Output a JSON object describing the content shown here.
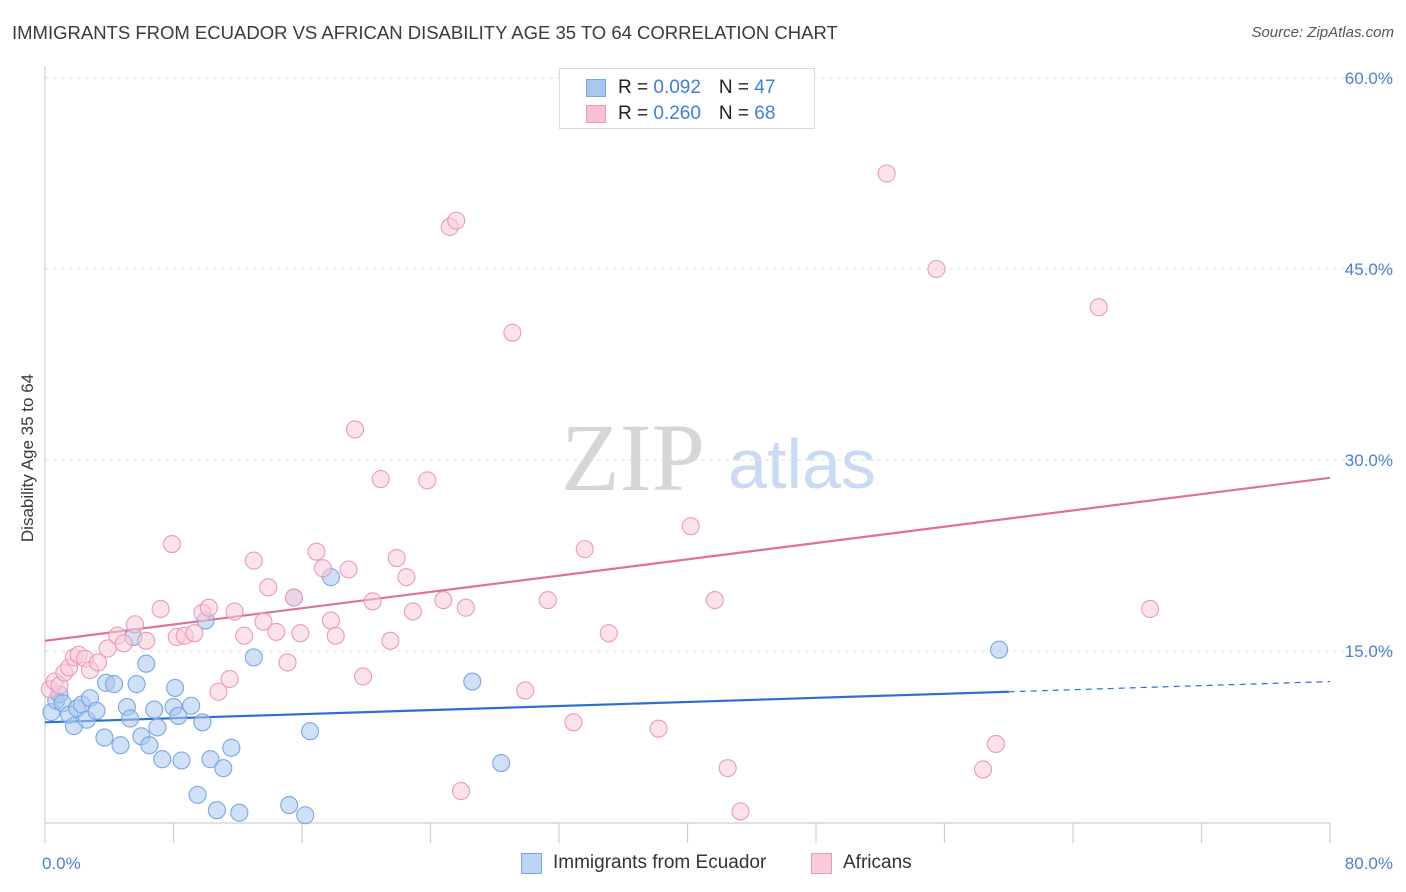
{
  "title": "IMMIGRANTS FROM ECUADOR VS AFRICAN DISABILITY AGE 35 TO 64 CORRELATION CHART",
  "source": "Source: ZipAtlas.com",
  "watermark": {
    "zip": "ZIP",
    "atlas": "atlas"
  },
  "stats": [
    {
      "r_label": "R = ",
      "r_value": "0.092",
      "n_label": "N = ",
      "n_value": "47",
      "color": "#a9c6f0",
      "border": "#7aa6e3"
    },
    {
      "r_label": "R = ",
      "r_value": "0.260",
      "n_label": "N = ",
      "n_value": "68",
      "color": "#f7c2d3",
      "border": "#ec9ab5"
    }
  ],
  "legend": [
    {
      "label": "Immigrants from Ecuador",
      "color": "#bcd4f5",
      "border": "#7aa6e3"
    },
    {
      "label": "Africans",
      "color": "#f9ccdb",
      "border": "#ec9ab5"
    }
  ],
  "chart_data": {
    "type": "scatter",
    "title": "IMMIGRANTS FROM ECUADOR VS AFRICAN DISABILITY AGE 35 TO 64 CORRELATION CHART",
    "xlabel": "",
    "ylabel": "Disability Age 35 to 64",
    "xlim": [
      0,
      80
    ],
    "ylim": [
      0,
      60
    ],
    "x_tick_labels": [
      {
        "value": 0,
        "label": "0.0%"
      },
      {
        "value": 80,
        "label": "80.0%"
      }
    ],
    "y_tick_labels": [
      {
        "value": 15,
        "label": "15.0%"
      },
      {
        "value": 30,
        "label": "30.0%"
      },
      {
        "value": 45,
        "label": "45.0%"
      },
      {
        "value": 60,
        "label": "60.0%"
      }
    ],
    "grid": true,
    "legend_position": "bottom",
    "series": [
      {
        "name": "Immigrants from Ecuador",
        "color": "#a9c6f0",
        "stroke": "#7aa6e3",
        "line_color": "#2d6fd1",
        "trend": {
          "x0": 0,
          "y0": 9.4,
          "x1": 60,
          "y1": 11.8,
          "dashed_to_x": 80,
          "dashed_to_y": 12.6
        },
        "points": [
          [
            0.4,
            10.2
          ],
          [
            0.7,
            11.1
          ],
          [
            0.9,
            11.6
          ],
          [
            1.1,
            10.9
          ],
          [
            1.5,
            10.0
          ],
          [
            1.8,
            9.1
          ],
          [
            2.0,
            10.5
          ],
          [
            2.3,
            10.8
          ],
          [
            2.6,
            9.6
          ],
          [
            2.8,
            11.3
          ],
          [
            3.2,
            10.3
          ],
          [
            3.8,
            12.5
          ],
          [
            4.3,
            12.4
          ],
          [
            3.7,
            8.2
          ],
          [
            4.7,
            7.6
          ],
          [
            5.1,
            10.6
          ],
          [
            5.3,
            9.7
          ],
          [
            5.7,
            12.4
          ],
          [
            6.0,
            8.3
          ],
          [
            6.3,
            14.0
          ],
          [
            6.5,
            7.6
          ],
          [
            6.8,
            10.4
          ],
          [
            7.0,
            9.0
          ],
          [
            7.3,
            6.5
          ],
          [
            8.1,
            12.1
          ],
          [
            8.0,
            10.6
          ],
          [
            8.3,
            9.9
          ],
          [
            8.5,
            6.4
          ],
          [
            9.1,
            10.7
          ],
          [
            9.5,
            3.7
          ],
          [
            9.8,
            9.4
          ],
          [
            10.3,
            6.5
          ],
          [
            10.7,
            2.5
          ],
          [
            11.1,
            5.8
          ],
          [
            11.6,
            7.4
          ],
          [
            12.1,
            2.3
          ],
          [
            13.0,
            14.5
          ],
          [
            15.2,
            2.9
          ],
          [
            16.5,
            8.7
          ],
          [
            16.2,
            2.1
          ],
          [
            15.5,
            19.2
          ],
          [
            17.8,
            20.8
          ],
          [
            26.6,
            12.6
          ],
          [
            28.4,
            6.2
          ],
          [
            59.4,
            15.1
          ],
          [
            10.0,
            17.4
          ],
          [
            5.5,
            16.1
          ]
        ]
      },
      {
        "name": "Africans",
        "color": "#f9ccdb",
        "stroke": "#ec9ab5",
        "line_color": "#e0709a",
        "trend": {
          "x0": 0,
          "y0": 15.8,
          "x1": 80,
          "y1": 28.6
        },
        "points": [
          [
            0.3,
            12.0
          ],
          [
            0.6,
            12.6
          ],
          [
            0.9,
            12.3
          ],
          [
            1.2,
            13.3
          ],
          [
            1.5,
            13.7
          ],
          [
            1.8,
            14.5
          ],
          [
            2.1,
            14.7
          ],
          [
            2.5,
            14.4
          ],
          [
            2.8,
            13.5
          ],
          [
            3.3,
            14.1
          ],
          [
            3.9,
            15.2
          ],
          [
            4.5,
            16.2
          ],
          [
            4.9,
            15.6
          ],
          [
            5.6,
            17.1
          ],
          [
            6.3,
            15.8
          ],
          [
            7.2,
            18.3
          ],
          [
            7.9,
            23.4
          ],
          [
            8.2,
            16.1
          ],
          [
            8.7,
            16.2
          ],
          [
            9.3,
            16.4
          ],
          [
            9.8,
            18.0
          ],
          [
            10.2,
            18.4
          ],
          [
            10.8,
            11.8
          ],
          [
            11.5,
            12.8
          ],
          [
            11.8,
            18.1
          ],
          [
            12.4,
            16.2
          ],
          [
            13.0,
            22.1
          ],
          [
            13.6,
            17.3
          ],
          [
            13.9,
            20.0
          ],
          [
            14.4,
            16.5
          ],
          [
            15.1,
            14.1
          ],
          [
            15.5,
            19.2
          ],
          [
            15.9,
            16.4
          ],
          [
            16.9,
            22.8
          ],
          [
            17.3,
            21.5
          ],
          [
            17.8,
            17.4
          ],
          [
            18.1,
            16.2
          ],
          [
            18.9,
            21.4
          ],
          [
            19.3,
            32.4
          ],
          [
            19.8,
            13.0
          ],
          [
            20.4,
            18.9
          ],
          [
            20.9,
            28.5
          ],
          [
            21.5,
            15.8
          ],
          [
            21.9,
            22.3
          ],
          [
            22.5,
            20.8
          ],
          [
            22.9,
            18.1
          ],
          [
            23.8,
            28.4
          ],
          [
            24.8,
            19.0
          ],
          [
            25.2,
            48.3
          ],
          [
            25.6,
            48.8
          ],
          [
            25.9,
            4.0
          ],
          [
            26.2,
            18.4
          ],
          [
            29.1,
            40.0
          ],
          [
            29.9,
            11.9
          ],
          [
            31.3,
            19.0
          ],
          [
            32.9,
            9.4
          ],
          [
            33.6,
            23.0
          ],
          [
            35.1,
            16.4
          ],
          [
            38.2,
            8.9
          ],
          [
            40.2,
            24.8
          ],
          [
            41.7,
            19.0
          ],
          [
            42.5,
            5.8
          ],
          [
            43.3,
            2.4
          ],
          [
            52.4,
            52.5
          ],
          [
            55.5,
            45.0
          ],
          [
            58.4,
            5.7
          ],
          [
            59.2,
            7.7
          ],
          [
            65.6,
            42.0
          ],
          [
            68.8,
            18.3
          ]
        ]
      }
    ]
  }
}
